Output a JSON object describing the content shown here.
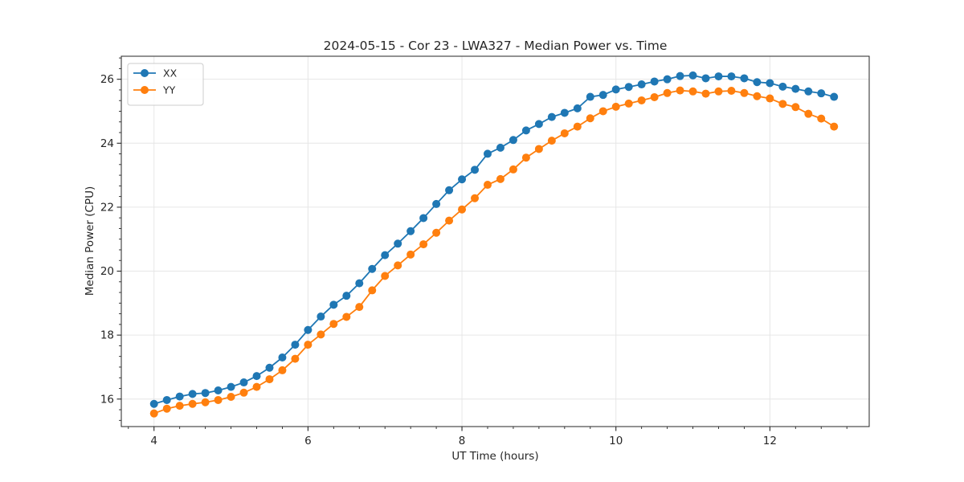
{
  "chart_data": {
    "type": "line",
    "title": "2024-05-15 - Cor 23 - LWA327 - Median Power vs. Time",
    "xlabel": "UT Time (hours)",
    "ylabel": "Median Power (CPU)",
    "x": [
      4.0,
      4.1667,
      4.3333,
      4.5,
      4.6667,
      4.8333,
      5.0,
      5.1667,
      5.3333,
      5.5,
      5.6667,
      5.8333,
      6.0,
      6.1667,
      6.3333,
      6.5,
      6.6667,
      6.8333,
      7.0,
      7.1667,
      7.3333,
      7.5,
      7.6667,
      7.8333,
      8.0,
      8.1667,
      8.3333,
      8.5,
      8.6667,
      8.8333,
      9.0,
      9.1667,
      9.3333,
      9.5,
      9.6667,
      9.8333,
      10.0,
      10.1667,
      10.3333,
      10.5,
      10.6667,
      10.8333,
      11.0,
      11.1667,
      11.3333,
      11.5,
      11.6667,
      11.8333,
      12.0,
      12.1667,
      12.3333,
      12.5,
      12.6667,
      12.8333
    ],
    "series": [
      {
        "name": "XX",
        "color": "#1f77b4",
        "marker": "circle",
        "values": [
          15.85,
          15.97,
          16.08,
          16.16,
          16.19,
          16.27,
          16.38,
          16.52,
          16.72,
          16.98,
          17.3,
          17.7,
          18.16,
          18.58,
          18.95,
          19.23,
          19.62,
          20.07,
          20.5,
          20.86,
          21.25,
          21.66,
          22.1,
          22.53,
          22.87,
          23.17,
          23.67,
          23.86,
          24.1,
          24.4,
          24.6,
          24.82,
          24.95,
          25.09,
          25.45,
          25.51,
          25.68,
          25.76,
          25.84,
          25.93,
          26.0,
          26.1,
          26.12,
          26.03,
          26.09,
          26.09,
          26.03,
          25.91,
          25.88,
          25.77,
          25.7,
          25.62,
          25.56,
          25.45
        ]
      },
      {
        "name": "YY",
        "color": "#ff7f0e",
        "marker": "circle",
        "values": [
          15.55,
          15.7,
          15.79,
          15.85,
          15.9,
          15.97,
          16.07,
          16.2,
          16.38,
          16.62,
          16.9,
          17.26,
          17.7,
          18.02,
          18.35,
          18.57,
          18.88,
          19.4,
          19.85,
          20.18,
          20.52,
          20.84,
          21.2,
          21.58,
          21.93,
          22.28,
          22.7,
          22.88,
          23.18,
          23.55,
          23.82,
          24.08,
          24.31,
          24.52,
          24.78,
          25.0,
          25.14,
          25.24,
          25.34,
          25.44,
          25.57,
          25.65,
          25.62,
          25.55,
          25.62,
          25.64,
          25.57,
          25.47,
          25.4,
          25.23,
          25.13,
          24.92,
          24.77,
          24.52
        ]
      }
    ],
    "xlim": [
      3.575,
      13.29
    ],
    "ylim": [
      15.14,
      26.72
    ],
    "x_ticks": [
      4,
      6,
      8,
      10,
      12
    ],
    "y_ticks": [
      16,
      18,
      20,
      22,
      24,
      26
    ],
    "x_minor_step": 0.333333,
    "y_minor_step": 0.333333,
    "grid": true,
    "legend": {
      "position": "upper-left",
      "entries": [
        "XX",
        "YY"
      ]
    }
  },
  "style": {
    "background": "#ffffff",
    "grid_color": "#e6e6e6",
    "spine_color": "#262626",
    "tick_color": "#262626",
    "text_color": "#262626",
    "legend_border": "#cccccc",
    "legend_bg": "#ffffff"
  }
}
